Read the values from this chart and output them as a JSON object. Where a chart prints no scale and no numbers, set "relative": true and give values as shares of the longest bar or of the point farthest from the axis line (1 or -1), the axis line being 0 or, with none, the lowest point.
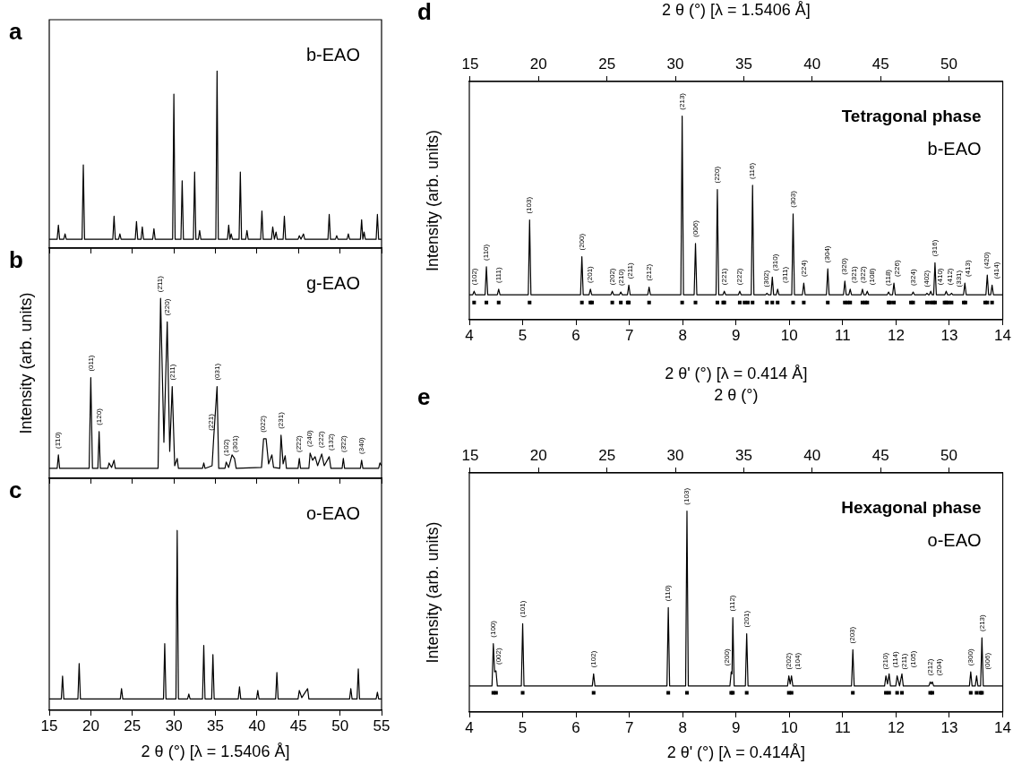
{
  "chart_data": [
    {
      "type": "line",
      "title": "a",
      "relative": true,
      "tick_labels": false,
      "xlim": [
        15,
        55
      ],
      "xticks": [
        15,
        20,
        25,
        30,
        35,
        40,
        45,
        50,
        55
      ],
      "annotations": [
        "b-EAO"
      ],
      "series": [
        {
          "color": "#000000",
          "x": [
            15,
            15.95,
            16.1,
            16.25,
            16.75,
            16.9,
            17.05,
            18.95,
            19.1,
            19.25,
            22.65,
            22.8,
            22.95,
            23.35,
            23.5,
            23.65,
            25.35,
            25.5,
            25.65,
            26.05,
            26.2,
            26.35,
            27.45,
            27.6,
            27.75,
            29.85,
            30.0,
            30.15,
            30.85,
            31.0,
            31.15,
            32.35,
            32.5,
            32.65,
            32.95,
            33.1,
            33.25,
            35.05,
            35.2,
            35.35,
            36.45,
            36.6,
            36.75,
            36.9,
            37.05,
            37.85,
            38.0,
            38.15,
            38.65,
            38.8,
            38.95,
            40.45,
            40.6,
            40.75,
            41.75,
            41.9,
            42.1,
            42.3,
            42.45,
            43.15,
            43.3,
            43.45,
            44.95,
            45.1,
            45.3,
            45.6,
            45.75,
            48.55,
            48.7,
            48.85,
            49.45,
            49.6,
            49.75,
            50.85,
            51.0,
            51.15,
            52.45,
            52.6,
            52.75,
            52.9,
            53.05,
            54.35,
            54.5,
            54.65,
            55
          ],
          "values": [
            0.05,
            0.05,
            0.13,
            0.05,
            0.05,
            0.08,
            0.05,
            0.05,
            0.47,
            0.05,
            0.05,
            0.18,
            0.05,
            0.05,
            0.08,
            0.05,
            0.05,
            0.15,
            0.05,
            0.05,
            0.12,
            0.05,
            0.05,
            0.11,
            0.05,
            0.05,
            0.87,
            0.05,
            0.05,
            0.38,
            0.05,
            0.05,
            0.43,
            0.05,
            0.05,
            0.1,
            0.05,
            0.05,
            1,
            0.05,
            0.05,
            0.13,
            0.05,
            0.08,
            0.05,
            0.05,
            0.43,
            0.05,
            0.05,
            0.1,
            0.05,
            0.05,
            0.21,
            0.05,
            0.05,
            0.12,
            0.05,
            0.09,
            0.05,
            0.05,
            0.18,
            0.05,
            0.05,
            0.07,
            0.05,
            0.08,
            0.05,
            0.05,
            0.19,
            0.05,
            0.05,
            0.07,
            0.05,
            0.05,
            0.08,
            0.05,
            0.05,
            0.16,
            0.05,
            0.09,
            0.05,
            0.05,
            0.19,
            0.05,
            0.05
          ]
        }
      ]
    },
    {
      "type": "line",
      "title": "b",
      "ylabel": "Intensity (arb. units)",
      "relative": true,
      "tick_labels": false,
      "xlim": [
        15,
        55
      ],
      "xticks": [
        15,
        20,
        25,
        30,
        35,
        40,
        45,
        50,
        55
      ],
      "annotations": [
        "g-EAO",
        {
          "text": "(1̄10)",
          "x": 16.1,
          "y": 0.13
        },
        {
          "text": "(011)",
          "x": 20.0,
          "y": 0.56
        },
        {
          "text": "(120)",
          "x": 21.0,
          "y": 0.26
        },
        {
          "text": "(2̄11)",
          "x": 28.4,
          "y": 1
        },
        {
          "text": "(220)",
          "x": 29.2,
          "y": 0.87
        },
        {
          "text": "(211)",
          "x": 29.8,
          "y": 0.51
        },
        {
          "text": "(221)",
          "x": 34.8,
          "y": 0.23
        },
        {
          "text": "(031)",
          "x": 35.2,
          "y": 0.51
        },
        {
          "text": "(102)",
          "x": 36.3,
          "y": 0.09
        },
        {
          "text": "(301)",
          "x": 37.3,
          "y": 0.11
        },
        {
          "text": "(022)",
          "x": 40.8,
          "y": 0.22
        },
        {
          "text": "(231)",
          "x": 42.9,
          "y": 0.24
        },
        {
          "text": "(2̄22)",
          "x": 45.1,
          "y": 0.11
        },
        {
          "text": "(240)",
          "x": 46.4,
          "y": 0.14
        },
        {
          "text": "(222)",
          "x": 47.8,
          "y": 0.135
        },
        {
          "text": "(132)",
          "x": 48.7,
          "y": 0.12
        },
        {
          "text": "(3̄22)",
          "x": 50.4,
          "y": 0.11
        },
        {
          "text": "(340)",
          "x": 52.6,
          "y": 0.1
        }
      ],
      "series": [
        {
          "color": "#000000",
          "x": [
            15,
            15.95,
            16.1,
            16.25,
            19.8,
            20.0,
            20.2,
            20.85,
            21.0,
            21.15,
            22.05,
            22.2,
            22.5,
            22.8,
            22.95,
            28.1,
            28.4,
            28.8,
            29.2,
            29.5,
            29.8,
            30.1,
            30.4,
            30.55,
            33.45,
            33.6,
            33.75,
            34.6,
            34.8,
            35.2,
            35.4,
            36.15,
            36.3,
            36.6,
            37.0,
            37.3,
            37.5,
            40.55,
            40.8,
            41.1,
            41.4,
            41.8,
            42.0,
            42.75,
            42.9,
            43.15,
            43.4,
            43.55,
            44.95,
            45.1,
            45.25,
            46.25,
            46.4,
            46.7,
            47.0,
            47.3,
            47.8,
            48.1,
            48.7,
            48.9,
            50.25,
            50.4,
            50.55,
            52.45,
            52.6,
            52.75,
            54.65,
            54.8,
            55
          ],
          "values": [
            0.055,
            0.055,
            0.13,
            0.055,
            0.055,
            0.56,
            0.055,
            0.055,
            0.26,
            0.055,
            0.055,
            0.085,
            0.06,
            0.1,
            0.055,
            0.055,
            1,
            0.2,
            0.87,
            0.15,
            0.51,
            0.07,
            0.11,
            0.055,
            0.055,
            0.085,
            0.055,
            0.07,
            0.23,
            0.51,
            0.055,
            0.055,
            0.09,
            0.06,
            0.13,
            0.11,
            0.055,
            0.06,
            0.22,
            0.22,
            0.08,
            0.13,
            0.06,
            0.055,
            0.24,
            0.08,
            0.125,
            0.055,
            0.055,
            0.11,
            0.055,
            0.055,
            0.14,
            0.1,
            0.12,
            0.07,
            0.135,
            0.07,
            0.12,
            0.055,
            0.055,
            0.11,
            0.055,
            0.055,
            0.1,
            0.055,
            0.055,
            0.085,
            0.07
          ]
        }
      ]
    },
    {
      "type": "line",
      "title": "c",
      "xlabel": "2 θ (°) [λ = 1.5406 Å]",
      "relative": true,
      "tick_labels": "x",
      "xlim": [
        15,
        55
      ],
      "xticks": [
        15,
        20,
        25,
        30,
        35,
        40,
        45,
        50,
        55
      ],
      "annotations": [
        "o-EAO"
      ],
      "series": [
        {
          "color": "#000000",
          "x": [
            15,
            16.45,
            16.6,
            16.75,
            18.45,
            18.6,
            18.75,
            23.55,
            23.7,
            23.85,
            28.75,
            28.9,
            29.05,
            30.25,
            30.4,
            30.55,
            31.65,
            31.8,
            31.95,
            33.45,
            33.6,
            33.75,
            34.55,
            34.7,
            34.85,
            37.75,
            37.9,
            38.05,
            39.95,
            40.1,
            40.25,
            42.25,
            42.4,
            42.55,
            44.95,
            45.1,
            45.4,
            46.1,
            46.25,
            51.15,
            51.3,
            51.45,
            52.05,
            52.2,
            52.35,
            54.35,
            54.5,
            54.65,
            55
          ],
          "values": [
            0.063,
            0.063,
            0.19,
            0.063,
            0.063,
            0.26,
            0.063,
            0.063,
            0.12,
            0.063,
            0.063,
            0.37,
            0.063,
            0.063,
            1,
            0.063,
            0.063,
            0.09,
            0.063,
            0.063,
            0.36,
            0.063,
            0.063,
            0.31,
            0.063,
            0.063,
            0.13,
            0.063,
            0.063,
            0.11,
            0.063,
            0.063,
            0.21,
            0.063,
            0.063,
            0.11,
            0.07,
            0.12,
            0.063,
            0.063,
            0.12,
            0.063,
            0.063,
            0.23,
            0.063,
            0.063,
            0.1,
            0.063,
            0.063
          ]
        }
      ]
    },
    {
      "type": "line",
      "title": "d",
      "xlabel": "2 θ' (°) [λ = 0.414 Å]",
      "x2label": "2 θ (°) [λ = 1.5406 Å]",
      "ylabel": "Intensity (arb. units)",
      "relative": true,
      "tick_labels": "x",
      "xlim": [
        4,
        14
      ],
      "xticks": [
        4,
        5,
        6,
        7,
        8,
        9,
        10,
        11,
        12,
        13,
        14
      ],
      "x2lim": [
        14.94,
        53.93
      ],
      "x2ticks": [
        15,
        20,
        25,
        30,
        35,
        40,
        45,
        50
      ],
      "annotations": [
        "Tetragonal phase",
        "b-EAO",
        {
          "text": "(102)",
          "x": 4.09,
          "y": 0.14
        },
        {
          "text": "(110)",
          "x": 4.32,
          "y": 0.26
        },
        {
          "text": "(111)",
          "x": 4.55,
          "y": 0.15
        },
        {
          "text": "(103)",
          "x": 5.13,
          "y": 0.49
        },
        {
          "text": "(200)",
          "x": 6.11,
          "y": 0.31
        },
        {
          "text": "(201)",
          "x": 6.27,
          "y": 0.15
        },
        {
          "text": "(202)",
          "x": 6.68,
          "y": 0.14
        },
        {
          "text": "(210)",
          "x": 6.84,
          "y": 0.136
        },
        {
          "text": "(211)",
          "x": 6.99,
          "y": 0.17
        },
        {
          "text": "(212)",
          "x": 7.37,
          "y": 0.16
        },
        {
          "text": "(213)",
          "x": 7.99,
          "y": 1
        },
        {
          "text": "(006)",
          "x": 8.24,
          "y": 0.375
        },
        {
          "text": "(220)",
          "x": 8.65,
          "y": 0.64
        },
        {
          "text": "(221)",
          "x": 8.78,
          "y": 0.14
        },
        {
          "text": "(222)",
          "x": 9.07,
          "y": 0.14
        },
        {
          "text": "(116)",
          "x": 9.31,
          "y": 0.66
        },
        {
          "text": "(302)",
          "x": 9.58,
          "y": 0.13
        },
        {
          "text": "(310)",
          "x": 9.68,
          "y": 0.21
        },
        {
          "text": "(311)",
          "x": 9.78,
          "y": 0.15
        },
        {
          "text": "(303)",
          "x": 10.07,
          "y": 0.52
        },
        {
          "text": "(224)",
          "x": 10.27,
          "y": 0.18
        },
        {
          "text": "(304)",
          "x": 10.72,
          "y": 0.25
        },
        {
          "text": "(320)",
          "x": 11.04,
          "y": 0.19
        },
        {
          "text": "(321)",
          "x": 11.14,
          "y": 0.15
        },
        {
          "text": "(322)",
          "x": 11.37,
          "y": 0.15
        },
        {
          "text": "(108)",
          "x": 11.46,
          "y": 0.14
        },
        {
          "text": "(118)",
          "x": 11.86,
          "y": 0.136
        },
        {
          "text": "(226)",
          "x": 11.96,
          "y": 0.18
        },
        {
          "text": "(324)",
          "x": 12.32,
          "y": 0.136
        },
        {
          "text": "(402)",
          "x": 12.58,
          "y": 0.13
        },
        {
          "text": "(410)",
          "x": 12.65,
          "y": 0.14
        },
        {
          "text": "(316)",
          "x": 12.73,
          "y": 0.28
        },
        {
          "text": "(412)",
          "x": 12.94,
          "y": 0.14
        },
        {
          "text": "(331)",
          "x": 13.04,
          "y": 0.13
        },
        {
          "text": "(413)",
          "x": 13.29,
          "y": 0.18
        },
        {
          "text": "(420)",
          "x": 13.71,
          "y": 0.22
        },
        {
          "text": "(414)",
          "x": 13.8,
          "y": 0.17
        }
      ],
      "series": [
        {
          "color": "#000000",
          "x": [
            4,
            4.065,
            4.09,
            4.115,
            4.295,
            4.32,
            4.345,
            4.525,
            4.55,
            4.575,
            5.105,
            5.13,
            5.155,
            6.085,
            6.11,
            6.135,
            6.245,
            6.27,
            6.295,
            6.655,
            6.68,
            6.705,
            6.815,
            6.84,
            6.865,
            6.965,
            6.99,
            7.015,
            7.345,
            7.37,
            7.395,
            7.965,
            7.99,
            8.015,
            8.215,
            8.24,
            8.265,
            8.625,
            8.65,
            8.675,
            8.755,
            8.78,
            8.805,
            9.045,
            9.07,
            9.095,
            9.285,
            9.31,
            9.335,
            9.555,
            9.58,
            9.605,
            9.655,
            9.68,
            9.705,
            9.755,
            9.78,
            9.805,
            10.045,
            10.07,
            10.095,
            10.245,
            10.27,
            10.295,
            10.695,
            10.72,
            10.745,
            11.015,
            11.04,
            11.065,
            11.115,
            11.14,
            11.165,
            11.345,
            11.37,
            11.395,
            11.435,
            11.46,
            11.485,
            11.835,
            11.86,
            11.885,
            11.935,
            11.96,
            11.985,
            12.295,
            12.32,
            12.345,
            12.555,
            12.58,
            12.605,
            12.625,
            12.65,
            12.675,
            12.705,
            12.73,
            12.755,
            12.915,
            12.94,
            12.965,
            13.015,
            13.04,
            13.065,
            13.265,
            13.29,
            13.315,
            13.685,
            13.71,
            13.735,
            13.775,
            13.8,
            13.825,
            14
          ],
          "values": [
            0.123,
            0.123,
            0.14,
            0.123,
            0.123,
            0.26,
            0.123,
            0.123,
            0.15,
            0.123,
            0.123,
            0.49,
            0.123,
            0.123,
            0.31,
            0.123,
            0.123,
            0.15,
            0.123,
            0.123,
            0.14,
            0.123,
            0.123,
            0.136,
            0.123,
            0.123,
            0.17,
            0.123,
            0.123,
            0.16,
            0.123,
            0.123,
            1,
            0.123,
            0.123,
            0.375,
            0.123,
            0.123,
            0.64,
            0.123,
            0.123,
            0.14,
            0.123,
            0.123,
            0.14,
            0.123,
            0.123,
            0.66,
            0.123,
            0.123,
            0.13,
            0.123,
            0.123,
            0.21,
            0.123,
            0.123,
            0.15,
            0.123,
            0.123,
            0.52,
            0.123,
            0.123,
            0.18,
            0.123,
            0.123,
            0.25,
            0.123,
            0.123,
            0.19,
            0.123,
            0.123,
            0.15,
            0.123,
            0.123,
            0.15,
            0.123,
            0.123,
            0.14,
            0.123,
            0.123,
            0.136,
            0.123,
            0.123,
            0.18,
            0.123,
            0.123,
            0.136,
            0.123,
            0.123,
            0.13,
            0.123,
            0.123,
            0.14,
            0.123,
            0.123,
            0.28,
            0.123,
            0.123,
            0.14,
            0.123,
            0.123,
            0.13,
            0.123,
            0.123,
            0.18,
            0.123,
            0.123,
            0.22,
            0.123,
            0.123,
            0.17,
            0.123,
            0.123
          ]
        },
        {
          "type": "scatter",
          "marker": "square",
          "color": "#000000",
          "x": [
            4.09,
            4.32,
            4.55,
            5.13,
            6.11,
            6.27,
            6.3,
            6.68,
            6.84,
            6.97,
            6.99,
            7.37,
            7.99,
            8.24,
            8.65,
            8.76,
            8.78,
            9.07,
            9.16,
            9.22,
            9.31,
            9.58,
            9.68,
            9.78,
            10.07,
            10.27,
            10.72,
            11.04,
            11.09,
            11.14,
            11.37,
            11.42,
            11.46,
            11.86,
            11.89,
            11.96,
            12.28,
            12.32,
            12.58,
            12.65,
            12.7,
            12.73,
            12.91,
            12.94,
            12.98,
            13.04,
            13.27,
            13.3,
            13.67,
            13.71,
            13.8
          ],
          "values": [
            0.085,
            0.085,
            0.085,
            0.085,
            0.085,
            0.085,
            0.085,
            0.085,
            0.085,
            0.085,
            0.085,
            0.085,
            0.085,
            0.085,
            0.085,
            0.085,
            0.085,
            0.085,
            0.085,
            0.085,
            0.085,
            0.085,
            0.085,
            0.085,
            0.085,
            0.085,
            0.085,
            0.085,
            0.085,
            0.085,
            0.085,
            0.085,
            0.085,
            0.085,
            0.085,
            0.085,
            0.085,
            0.085,
            0.085,
            0.085,
            0.085,
            0.085,
            0.085,
            0.085,
            0.085,
            0.085,
            0.085,
            0.085,
            0.085,
            0.085,
            0.085
          ]
        }
      ]
    },
    {
      "type": "line",
      "title": "e",
      "xlabel": "2 θ' (°) [λ = 0.414Å]",
      "x2label": "2 θ (°)",
      "ylabel": "Intensity (arb. units)",
      "relative": true,
      "tick_labels": "x",
      "xlim": [
        4,
        14
      ],
      "xticks": [
        4,
        5,
        6,
        7,
        8,
        9,
        10,
        11,
        12,
        13,
        14
      ],
      "x2lim": [
        14.94,
        53.93
      ],
      "x2ticks": [
        15,
        20,
        25,
        30,
        35,
        40,
        45,
        50
      ],
      "annotations": [
        "Hexagonal phase",
        "o-EAO",
        {
          "text": "(100)",
          "x": 4.45,
          "y": 0.34
        },
        {
          "text": "(002)",
          "x": 4.5,
          "y": 0.205
        },
        {
          "text": "(101)",
          "x": 5.0,
          "y": 0.44
        },
        {
          "text": "(102)",
          "x": 6.33,
          "y": 0.19
        },
        {
          "text": "(110)",
          "x": 7.73,
          "y": 0.52
        },
        {
          "text": "(103)",
          "x": 8.08,
          "y": 1
        },
        {
          "text": "(200)",
          "x": 8.91,
          "y": 0.2
        },
        {
          "text": "(112)",
          "x": 8.94,
          "y": 0.47
        },
        {
          "text": "(201)",
          "x": 9.2,
          "y": 0.39
        },
        {
          "text": "(202)",
          "x": 9.99,
          "y": 0.18
        },
        {
          "text": "(104)",
          "x": 10.04,
          "y": 0.18
        },
        {
          "text": "(203)",
          "x": 11.19,
          "y": 0.31
        },
        {
          "text": "(210)",
          "x": 11.81,
          "y": 0.18
        },
        {
          "text": "(114)",
          "x": 11.87,
          "y": 0.19
        },
        {
          "text": "(211)",
          "x": 12.02,
          "y": 0.18
        },
        {
          "text": "(105)",
          "x": 12.11,
          "y": 0.19
        },
        {
          "text": "(212)",
          "x": 12.64,
          "y": 0.15
        },
        {
          "text": "(204)",
          "x": 12.68,
          "y": 0.15
        },
        {
          "text": "(300)",
          "x": 13.4,
          "y": 0.2
        },
        {
          "text": "(006)",
          "x": 13.51,
          "y": 0.18
        },
        {
          "text": "(213)",
          "x": 13.61,
          "y": 0.37
        }
      ],
      "series": [
        {
          "color": "#000000",
          "x": [
            4,
            4.425,
            4.45,
            4.475,
            4.5,
            4.525,
            4.975,
            5.0,
            5.025,
            6.305,
            6.33,
            6.355,
            7.705,
            7.73,
            7.755,
            8.055,
            8.08,
            8.105,
            8.885,
            8.91,
            8.925,
            8.94,
            8.965,
            9.175,
            9.2,
            9.225,
            9.965,
            9.99,
            10.015,
            10.04,
            10.065,
            11.165,
            11.19,
            11.215,
            11.785,
            11.81,
            11.84,
            11.87,
            11.895,
            11.995,
            12.02,
            12.065,
            12.11,
            12.135,
            12.615,
            12.64,
            12.66,
            12.68,
            12.705,
            13.375,
            13.4,
            13.425,
            13.485,
            13.51,
            13.535,
            13.585,
            13.61,
            13.635,
            14
          ],
          "values": [
            0.13,
            0.13,
            0.34,
            0.2,
            0.205,
            0.13,
            0.13,
            0.44,
            0.13,
            0.13,
            0.19,
            0.13,
            0.13,
            0.52,
            0.13,
            0.13,
            1,
            0.13,
            0.13,
            0.2,
            0.19,
            0.47,
            0.13,
            0.13,
            0.39,
            0.13,
            0.13,
            0.18,
            0.14,
            0.18,
            0.13,
            0.13,
            0.31,
            0.13,
            0.13,
            0.18,
            0.14,
            0.19,
            0.13,
            0.13,
            0.18,
            0.13,
            0.19,
            0.13,
            0.13,
            0.15,
            0.14,
            0.15,
            0.13,
            0.13,
            0.2,
            0.13,
            0.13,
            0.18,
            0.13,
            0.13,
            0.37,
            0.13,
            0.13
          ]
        },
        {
          "type": "scatter",
          "marker": "square",
          "color": "#000000",
          "x": [
            4.45,
            4.5,
            5.0,
            6.33,
            7.73,
            8.08,
            8.91,
            8.94,
            9.2,
            9.99,
            10.04,
            11.19,
            11.81,
            11.87,
            12.02,
            12.11,
            12.64,
            12.68,
            13.4,
            13.51,
            13.58,
            13.61
          ],
          "values": [
            0.096,
            0.096,
            0.096,
            0.096,
            0.096,
            0.096,
            0.096,
            0.096,
            0.096,
            0.096,
            0.096,
            0.096,
            0.096,
            0.096,
            0.096,
            0.096,
            0.096,
            0.096,
            0.096,
            0.096,
            0.096,
            0.096
          ]
        }
      ]
    }
  ]
}
